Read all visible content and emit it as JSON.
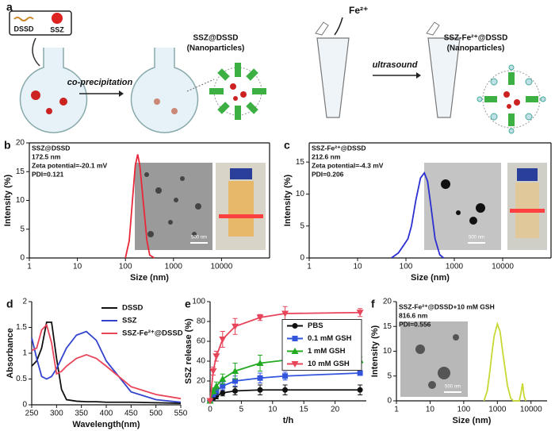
{
  "diagram": {
    "label": "a",
    "box_items": [
      "DSSD",
      "SSZ"
    ],
    "step1": "co-precipitation",
    "product1": [
      "SSZ@DSSD",
      "(Nanoparticles)"
    ],
    "reagent": "Fe²⁺",
    "step2": "ultrasound",
    "product2": [
      "SSZ-Fe²⁺@DSSD",
      "(Nanoparticles)"
    ]
  },
  "chart_data": [
    {
      "type": "line",
      "panel_label": "b",
      "annotations": [
        "SSZ@DSSD",
        "172.5 nm",
        "Zeta potential=-20.1 mV",
        "PDI=0.121"
      ],
      "scale_bar": "500 nm",
      "x_label": "Size (nm)",
      "y_label": "Intensity (%)",
      "xscale": "log",
      "xlim": [
        1,
        100000
      ],
      "xticks": [
        1,
        10,
        100,
        1000,
        10000
      ],
      "ylim": [
        0,
        20
      ],
      "yticks": [
        0,
        5,
        10,
        15,
        20
      ],
      "x": [
        100,
        120,
        140,
        160,
        180,
        200,
        240,
        280,
        320,
        400
      ],
      "series": [
        {
          "color": "#e8283a",
          "values": [
            0,
            3,
            10,
            16,
            18,
            16,
            9,
            3,
            0.5,
            0
          ]
        }
      ]
    },
    {
      "type": "line",
      "panel_label": "c",
      "annotations": [
        "SSZ-Fe²⁺@DSSD",
        "212.6 nm",
        "Zeta potential=-4.3 mV",
        "PDI=0.206"
      ],
      "scale_bar": "500 nm",
      "x_label": "Size (nm)",
      "y_label": "Intensity (%)",
      "xscale": "log",
      "xlim": [
        1,
        100000
      ],
      "xticks": [
        1,
        10,
        100,
        1000,
        10000
      ],
      "ylim": [
        0,
        18
      ],
      "yticks": [
        0,
        5,
        10,
        15
      ],
      "x": [
        50,
        70,
        90,
        110,
        130,
        160,
        200,
        240,
        280,
        330,
        400,
        500,
        600
      ],
      "series": [
        {
          "color": "#2a2fd0",
          "values": [
            0,
            0.8,
            2,
            3,
            5,
            9,
            12.5,
            13.3,
            12,
            8,
            3,
            0.5,
            0
          ]
        }
      ]
    },
    {
      "type": "line",
      "panel_label": "d",
      "x_label": "Wavelength(nm)",
      "y_label": "Absorbance",
      "xlim": [
        250,
        550
      ],
      "xticks": [
        250,
        300,
        350,
        400,
        450,
        500,
        550
      ],
      "ylim": [
        0,
        2
      ],
      "yticks": [
        0,
        0.5,
        1,
        1.5,
        2
      ],
      "legend": "upper right",
      "x": [
        250,
        260,
        270,
        280,
        290,
        300,
        310,
        320,
        340,
        360,
        380,
        400,
        450,
        500,
        550
      ],
      "series": [
        {
          "name": "DSSD",
          "color": "#111111",
          "values": [
            0.75,
            0.85,
            1.1,
            1.6,
            1.6,
            0.9,
            0.3,
            0.1,
            0.07,
            0.06,
            0.06,
            0.05,
            0.05,
            0.04,
            0.03
          ]
        },
        {
          "name": "SSZ",
          "color": "#3344cc",
          "values": [
            1.3,
            0.9,
            0.55,
            0.5,
            0.55,
            0.7,
            0.9,
            1.1,
            1.35,
            1.42,
            1.25,
            0.85,
            0.25,
            0.1,
            0.05
          ]
        },
        {
          "name": "SSZ-Fe²⁺@DSSD",
          "color": "#e8455a",
          "values": [
            1.05,
            1.1,
            1.45,
            1.55,
            1.2,
            0.6,
            0.65,
            0.75,
            0.9,
            0.97,
            0.9,
            0.75,
            0.35,
            0.2,
            0.12
          ]
        }
      ]
    },
    {
      "type": "line",
      "panel_label": "e",
      "x_label": "t/h",
      "y_label": "SSZ release (%)",
      "xlim": [
        0,
        25
      ],
      "xticks": [
        0,
        5,
        10,
        15,
        20
      ],
      "ylim": [
        0,
        100
      ],
      "yticks": [
        0,
        20,
        40,
        60,
        80,
        100
      ],
      "legend": "center right",
      "x": [
        0,
        0.5,
        1,
        2,
        4,
        8,
        12,
        24
      ],
      "series": [
        {
          "name": "PBS",
          "color": "#111111",
          "marker": "circle",
          "values": [
            0,
            3,
            5,
            8,
            10,
            11,
            11,
            11
          ],
          "errors": [
            0,
            2,
            3,
            3,
            4,
            5,
            5,
            5
          ]
        },
        {
          "name": "0.1 mM GSH",
          "color": "#3355dd",
          "marker": "square",
          "values": [
            0,
            7,
            10,
            15,
            20,
            23,
            25,
            28
          ],
          "errors": [
            0,
            3,
            4,
            4,
            5,
            5,
            4,
            2
          ]
        },
        {
          "name": "1 mM GSH",
          "color": "#22aa22",
          "marker": "triangle-up",
          "values": [
            0,
            10,
            15,
            22,
            30,
            38,
            41,
            41
          ],
          "errors": [
            0,
            3,
            4,
            5,
            8,
            8,
            4,
            3
          ]
        },
        {
          "name": "10 mM GSH",
          "color": "#e8455a",
          "marker": "triangle-down",
          "values": [
            0,
            30,
            45,
            62,
            75,
            84,
            88,
            89
          ],
          "errors": [
            0,
            4,
            5,
            8,
            8,
            3,
            7,
            4
          ]
        }
      ]
    },
    {
      "type": "line",
      "panel_label": "f",
      "annotations": [
        "SSZ-Fe²⁺@DSSD+10 mM GSH",
        "816.6 nm",
        "PDI=0.556"
      ],
      "scale_bar": "500 nm",
      "x_label": "Size (nm)",
      "y_label": "Intensity (%)",
      "xscale": "log",
      "xlim": [
        1,
        30000
      ],
      "xticks": [
        1,
        10,
        100,
        1000,
        10000
      ],
      "ylim": [
        0,
        20
      ],
      "yticks": [
        0,
        5,
        10,
        15,
        20
      ],
      "x": [
        400,
        500,
        600,
        700,
        800,
        1000,
        1200,
        1500,
        2000,
        2500,
        3000,
        4500,
        5000,
        5600,
        6200,
        7000
      ],
      "series": [
        {
          "color": "#c8d832",
          "values": [
            0,
            2,
            6,
            10,
            13,
            15.5,
            14,
            9,
            3,
            0.5,
            0,
            0,
            1.5,
            3.5,
            1,
            0
          ]
        }
      ]
    }
  ]
}
